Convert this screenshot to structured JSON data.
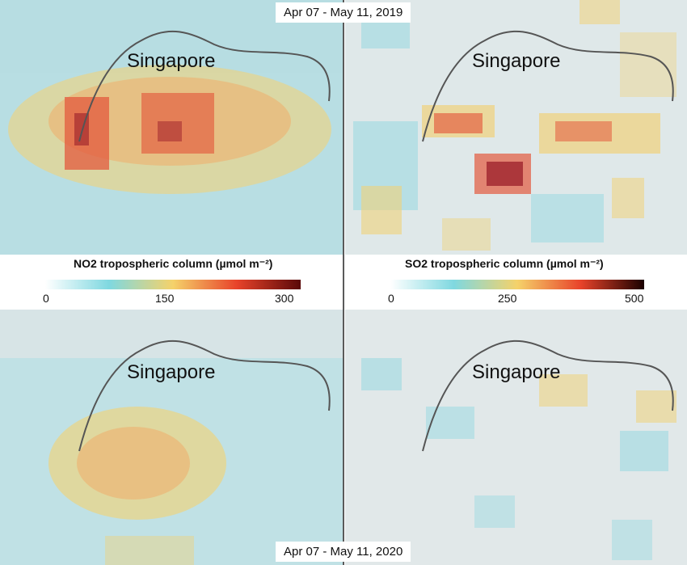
{
  "periods": {
    "top": "Apr 07 - May 11, 2019",
    "bottom": "Apr 07 - May 11, 2020"
  },
  "place_label": "Singapore",
  "legends": {
    "no2": {
      "title": "NO2 tropospheric column (µmol m⁻²)",
      "ticks": [
        "0",
        "150",
        "300"
      ],
      "colors": [
        "#ffffff",
        "#7fd8e0",
        "#f5d26a",
        "#e8432a",
        "#5a0808"
      ]
    },
    "so2": {
      "title": "SO2 tropospheric column (µmol m⁻²)",
      "ticks": [
        "0",
        "250",
        "500"
      ],
      "colors": [
        "#ffffff",
        "#7fd8e0",
        "#f5d26a",
        "#e8432a",
        "#1a0000"
      ]
    }
  },
  "map_colors": {
    "land": "#e9e9e9",
    "water": "#cfe8ea",
    "coastline": "#555555",
    "low": "#8fd6df",
    "mid": "#f0d27a",
    "high": "#e35a3d",
    "peak": "#9a1e2a"
  }
}
